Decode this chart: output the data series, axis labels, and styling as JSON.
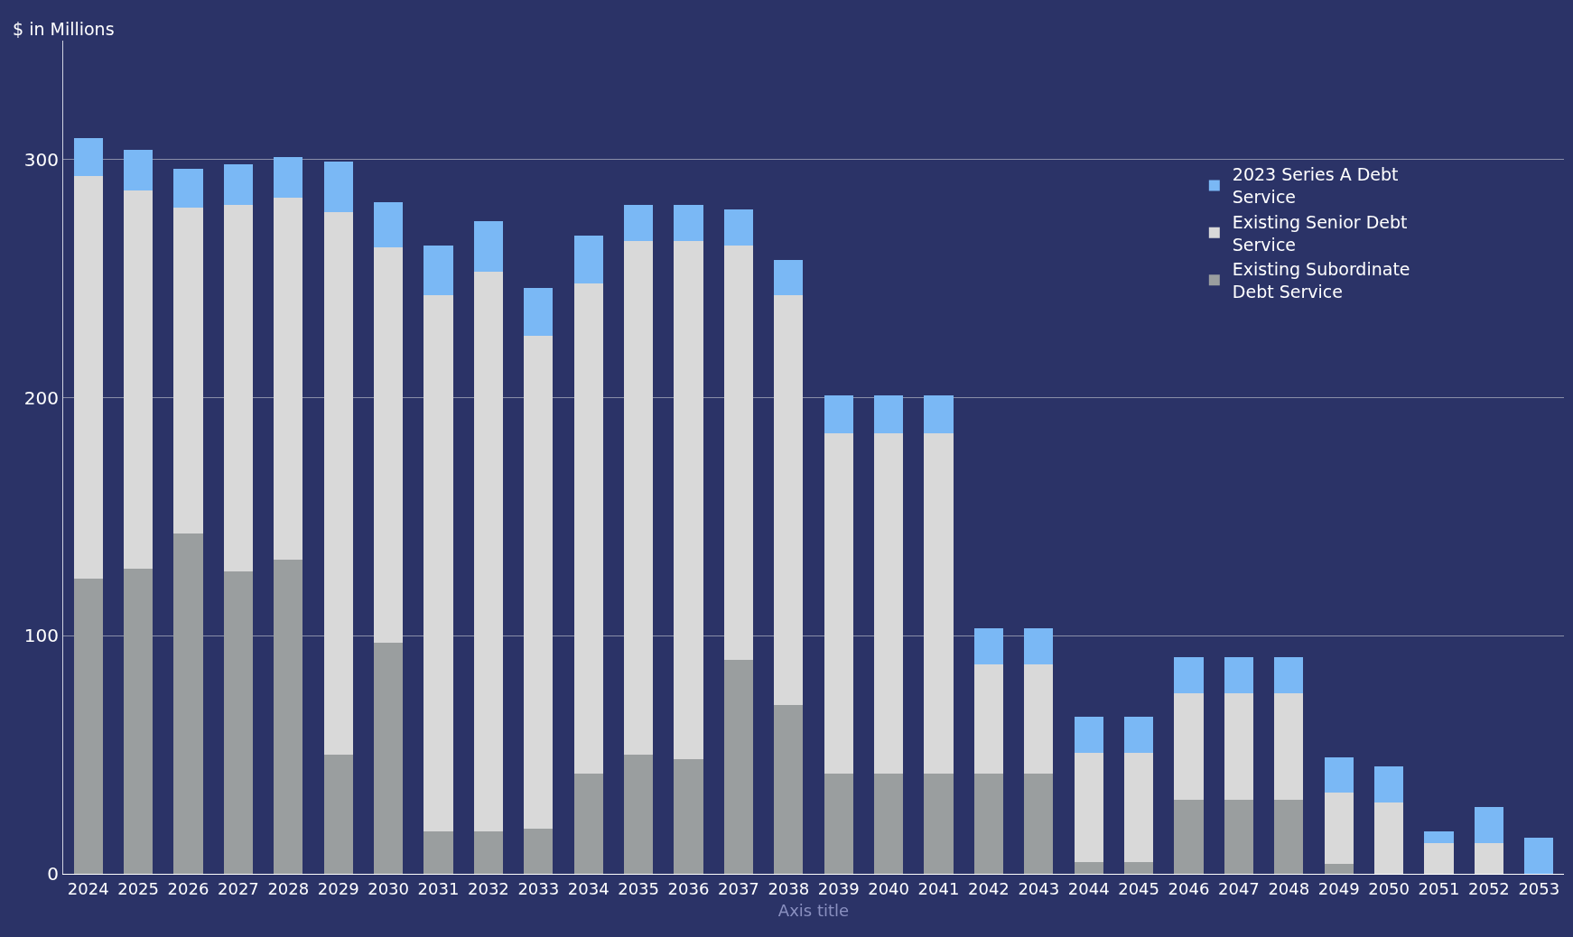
{
  "chart_data": {
    "type": "bar",
    "stacked": true,
    "ylabel": "$ in Millions",
    "xlabel": "Axis title",
    "categories": [
      "2024",
      "2025",
      "2026",
      "2027",
      "2028",
      "2029",
      "2030",
      "2031",
      "2032",
      "2033",
      "2034",
      "2035",
      "2036",
      "2037",
      "2038",
      "2039",
      "2040",
      "2041",
      "2042",
      "2043",
      "2044",
      "2045",
      "2046",
      "2047",
      "2048",
      "2049",
      "2050",
      "2051",
      "2052",
      "2053"
    ],
    "series": [
      {
        "name": "Existing Subordinate Debt Service",
        "color": "#9a9e9f",
        "values": [
          124,
          128,
          143,
          127,
          132,
          50,
          97,
          18,
          18,
          19,
          42,
          50,
          48,
          90,
          71,
          42,
          42,
          42,
          42,
          42,
          5,
          5,
          31,
          31,
          31,
          4,
          0,
          0,
          0,
          0
        ]
      },
      {
        "name": "Existing Senior Debt Service",
        "color": "#d9d9d9",
        "values": [
          169,
          159,
          137,
          154,
          152,
          228,
          166,
          225,
          235,
          207,
          206,
          216,
          218,
          174,
          172,
          143,
          143,
          143,
          46,
          46,
          46,
          46,
          45,
          45,
          45,
          30,
          30,
          13,
          13,
          0
        ]
      },
      {
        "name": "2023 Series A Debt Service",
        "color": "#7ab8f5",
        "values": [
          16,
          17,
          16,
          17,
          17,
          21,
          19,
          21,
          21,
          20,
          20,
          15,
          15,
          15,
          15,
          16,
          16,
          16,
          15,
          15,
          15,
          15,
          15,
          15,
          15,
          15,
          15,
          5,
          15,
          15
        ]
      }
    ],
    "ylim": [
      0,
      350
    ],
    "yticks": [
      0,
      100,
      200,
      300
    ],
    "grid": "y",
    "legend": "top right"
  }
}
